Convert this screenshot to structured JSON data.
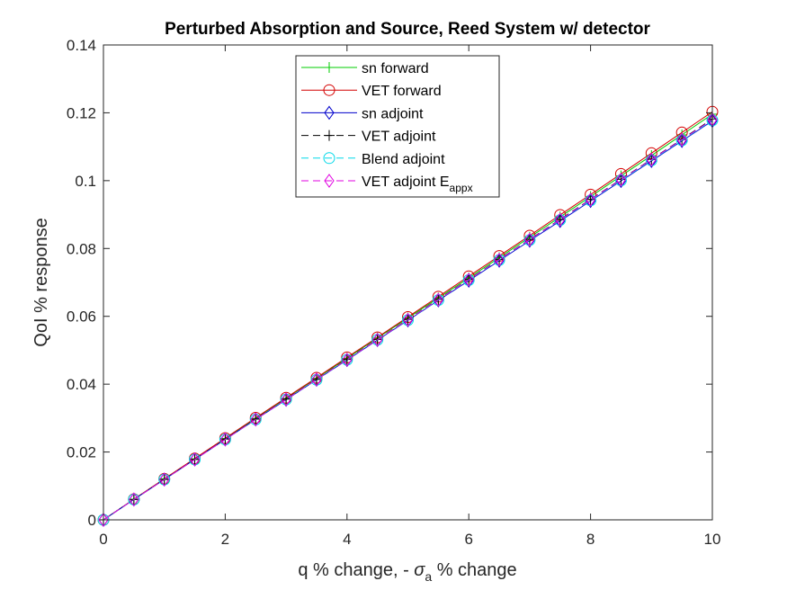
{
  "chart_data": {
    "type": "line",
    "title": "Perturbed Absorption and Source, Reed System w/ detector",
    "xlabel": {
      "prefix": "q % change, - ",
      "symbol": "σ",
      "subscript": "a",
      "suffix": " % change"
    },
    "ylabel": "QoI % response",
    "xlim": [
      0,
      10
    ],
    "ylim": [
      0,
      0.14
    ],
    "x_ticks": [
      "0",
      "2",
      "4",
      "6",
      "8",
      "10"
    ],
    "y_ticks": [
      "0",
      "0.02",
      "0.04",
      "0.06",
      "0.08",
      "0.1",
      "0.12",
      "0.14"
    ],
    "x_tick_values": [
      0,
      2,
      4,
      6,
      8,
      10
    ],
    "y_tick_values": [
      0,
      0.02,
      0.04,
      0.06,
      0.08,
      0.1,
      0.12,
      0.14
    ],
    "legend_position": "top-center",
    "x": [
      0,
      0.5,
      1,
      1.5,
      2,
      2.5,
      3,
      3.5,
      4,
      4.5,
      5,
      5.5,
      6,
      6.5,
      7,
      7.5,
      8,
      8.5,
      9,
      9.5,
      10
    ],
    "series": [
      {
        "name": "sn forward",
        "color": "#00cc00",
        "dash": "solid",
        "marker": "plus",
        "values": [
          0,
          0.0061,
          0.0121,
          0.018,
          0.024,
          0.0299,
          0.0358,
          0.0417,
          0.0476,
          0.0536,
          0.0595,
          0.0654,
          0.0713,
          0.0773,
          0.0833,
          0.0893,
          0.0953,
          0.1014,
          0.1074,
          0.1135,
          0.1196
        ]
      },
      {
        "name": "VET forward",
        "color": "#d40000",
        "dash": "solid",
        "marker": "circle",
        "values": [
          0,
          0.0061,
          0.0121,
          0.0181,
          0.0241,
          0.0301,
          0.036,
          0.0419,
          0.0479,
          0.0538,
          0.0598,
          0.0658,
          0.0718,
          0.0778,
          0.0838,
          0.0899,
          0.0959,
          0.102,
          0.1081,
          0.1142,
          0.1203
        ]
      },
      {
        "name": "sn adjoint",
        "color": "#0000cc",
        "dash": "solid",
        "marker": "diamond",
        "values": [
          0,
          0.006,
          0.0119,
          0.0178,
          0.0237,
          0.0296,
          0.0354,
          0.0413,
          0.0471,
          0.053,
          0.0588,
          0.0647,
          0.0705,
          0.0764,
          0.0823,
          0.0881,
          0.094,
          0.0999,
          0.1058,
          0.1117,
          0.1176
        ]
      },
      {
        "name": "VET adjoint",
        "color": "#000000",
        "dash": "dashed",
        "marker": "plus",
        "values": [
          0,
          0.006,
          0.0119,
          0.0178,
          0.0238,
          0.0297,
          0.0356,
          0.0414,
          0.0473,
          0.0532,
          0.0591,
          0.065,
          0.0709,
          0.0768,
          0.0827,
          0.0886,
          0.0945,
          0.1004,
          0.1063,
          0.1122,
          0.1182
        ]
      },
      {
        "name": "Blend adjoint",
        "color": "#00d8e8",
        "dash": "dashed",
        "marker": "circle",
        "values": [
          0,
          0.006,
          0.0119,
          0.0178,
          0.0237,
          0.0296,
          0.0355,
          0.0413,
          0.0472,
          0.0531,
          0.0589,
          0.0648,
          0.0707,
          0.0766,
          0.0825,
          0.0884,
          0.0942,
          0.1001,
          0.106,
          0.1119,
          0.1178
        ]
      },
      {
        "name": "VET adjoint E",
        "name_subscript": "appx",
        "color": "#e000e0",
        "dash": "dashed",
        "marker": "diamond",
        "values": [
          0,
          0.006,
          0.0119,
          0.0178,
          0.0237,
          0.0296,
          0.0355,
          0.0414,
          0.0472,
          0.0531,
          0.059,
          0.0649,
          0.0708,
          0.0767,
          0.0826,
          0.0885,
          0.0944,
          0.1003,
          0.1062,
          0.1121,
          0.118
        ]
      }
    ]
  }
}
